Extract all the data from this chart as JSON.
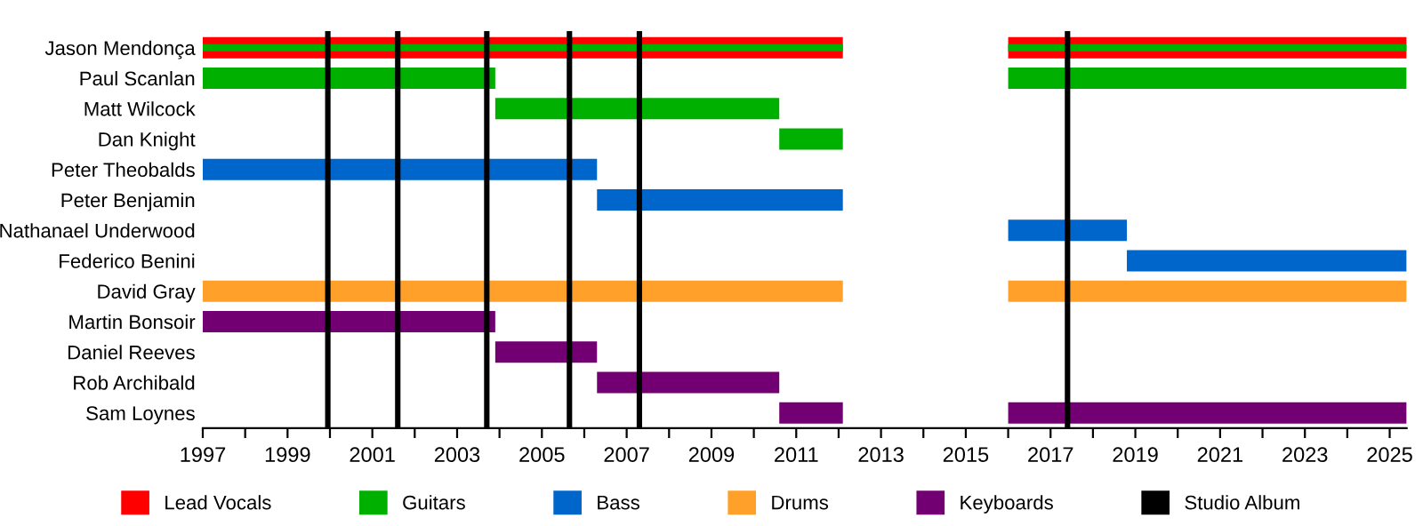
{
  "chart_data": {
    "type": "bar",
    "orientation": "horizontal",
    "categories": [
      "Jason Mendonça",
      "Paul Scanlan",
      "Matt Wilcock",
      "Dan Knight",
      "Peter Theobalds",
      "Peter Benjamin",
      "Nathanael Underwood",
      "Federico Benini",
      "David Gray",
      "Martin Bonsoir",
      "Daniel Reeves",
      "Rob Archibald",
      "Sam Loynes"
    ],
    "series": [
      {
        "name": "Lead Vocals",
        "color": "#ff0000",
        "base": [
          1997,
          null,
          null,
          null,
          null,
          null,
          null,
          null,
          null,
          null,
          null,
          null,
          null
        ],
        "values": [
          15.1,
          null,
          null,
          null,
          null,
          null,
          null,
          null,
          null,
          null,
          null,
          null,
          null
        ]
      },
      {
        "color": "#ff0000",
        "base": [
          2016,
          null,
          null,
          null,
          null,
          null,
          null,
          null,
          null,
          null,
          null,
          null,
          null
        ],
        "values": [
          9.4,
          null,
          null,
          null,
          null,
          null,
          null,
          null,
          null,
          null,
          null,
          null,
          null
        ]
      },
      {
        "name": "Guitars",
        "color": "#00b000",
        "base": [
          1997,
          1997,
          2003.9,
          2010.6,
          null,
          null,
          null,
          null,
          null,
          null,
          null,
          null,
          null
        ],
        "values": [
          15.1,
          6.9,
          6.7,
          1.5,
          null,
          null,
          null,
          null,
          null,
          null,
          null,
          null,
          null
        ]
      },
      {
        "color": "#00b000",
        "base": [
          2016,
          2016,
          null,
          null,
          null,
          null,
          null,
          null,
          null,
          null,
          null,
          null,
          null
        ],
        "values": [
          9.4,
          9.4,
          null,
          null,
          null,
          null,
          null,
          null,
          null,
          null,
          null,
          null,
          null
        ]
      },
      {
        "name": "Bass",
        "color": "#0066cc",
        "base": [
          null,
          null,
          null,
          null,
          1997,
          2006.3,
          2016,
          2018.8,
          null,
          null,
          null,
          null,
          null
        ],
        "values": [
          null,
          null,
          null,
          null,
          9.3,
          5.8,
          2.8,
          6.6,
          null,
          null,
          null,
          null,
          null
        ]
      },
      {
        "name": "Drums",
        "color": "#ffa02a",
        "base": [
          null,
          null,
          null,
          null,
          null,
          null,
          null,
          null,
          1997,
          null,
          null,
          null,
          null
        ],
        "values": [
          null,
          null,
          null,
          null,
          null,
          null,
          null,
          null,
          15.1,
          null,
          null,
          null,
          null
        ]
      },
      {
        "color": "#ffa02a",
        "base": [
          null,
          null,
          null,
          null,
          null,
          null,
          null,
          null,
          2016,
          null,
          null,
          null,
          null
        ],
        "values": [
          null,
          null,
          null,
          null,
          null,
          null,
          null,
          null,
          9.4,
          null,
          null,
          null,
          null
        ]
      },
      {
        "name": "Keyboards",
        "color": "#730073",
        "base": [
          null,
          null,
          null,
          null,
          null,
          null,
          null,
          null,
          null,
          1997,
          2003.9,
          2006.3,
          2010.6
        ],
        "values": [
          null,
          null,
          null,
          null,
          null,
          null,
          null,
          null,
          null,
          6.9,
          2.4,
          4.3,
          1.5
        ]
      },
      {
        "color": "#730073",
        "base": [
          null,
          null,
          null,
          null,
          null,
          null,
          null,
          null,
          null,
          null,
          null,
          null,
          2016
        ],
        "values": [
          null,
          null,
          null,
          null,
          null,
          null,
          null,
          null,
          null,
          null,
          null,
          null,
          9.4
        ]
      }
    ],
    "ref_lines": [
      {
        "axis": "x",
        "value": 1999.95,
        "label": "Studio Album",
        "color": "#000000"
      },
      {
        "axis": "x",
        "value": 2001.6,
        "color": "#000000"
      },
      {
        "axis": "x",
        "value": 2003.7,
        "color": "#000000"
      },
      {
        "axis": "x",
        "value": 2005.65,
        "color": "#000000"
      },
      {
        "axis": "x",
        "value": 2007.3,
        "color": "#000000"
      },
      {
        "axis": "x",
        "value": 2017.4,
        "color": "#000000"
      }
    ],
    "xlim": [
      1997,
      2025.4
    ],
    "xticks": [
      1997,
      {
        "value": 1998,
        "label": null
      },
      1999,
      {
        "value": 2000,
        "label": null
      },
      2001,
      {
        "value": 2002,
        "label": null
      },
      2003,
      {
        "value": 2004,
        "label": null
      },
      2005,
      {
        "value": 2006,
        "label": null
      },
      2007,
      {
        "value": 2008,
        "label": null
      },
      2009,
      {
        "value": 2010,
        "label": null
      },
      2011,
      {
        "value": 2012,
        "label": null
      },
      2013,
      {
        "value": 2014,
        "label": null
      },
      2015,
      {
        "value": 2016,
        "label": null
      },
      2017,
      {
        "value": 2018,
        "label": null
      },
      2019,
      {
        "value": 2020,
        "label": null
      },
      2021,
      {
        "value": 2022,
        "label": null
      },
      2023,
      {
        "value": 2024,
        "label": null
      },
      2025
    ],
    "grid": false,
    "legend": "bottom"
  }
}
